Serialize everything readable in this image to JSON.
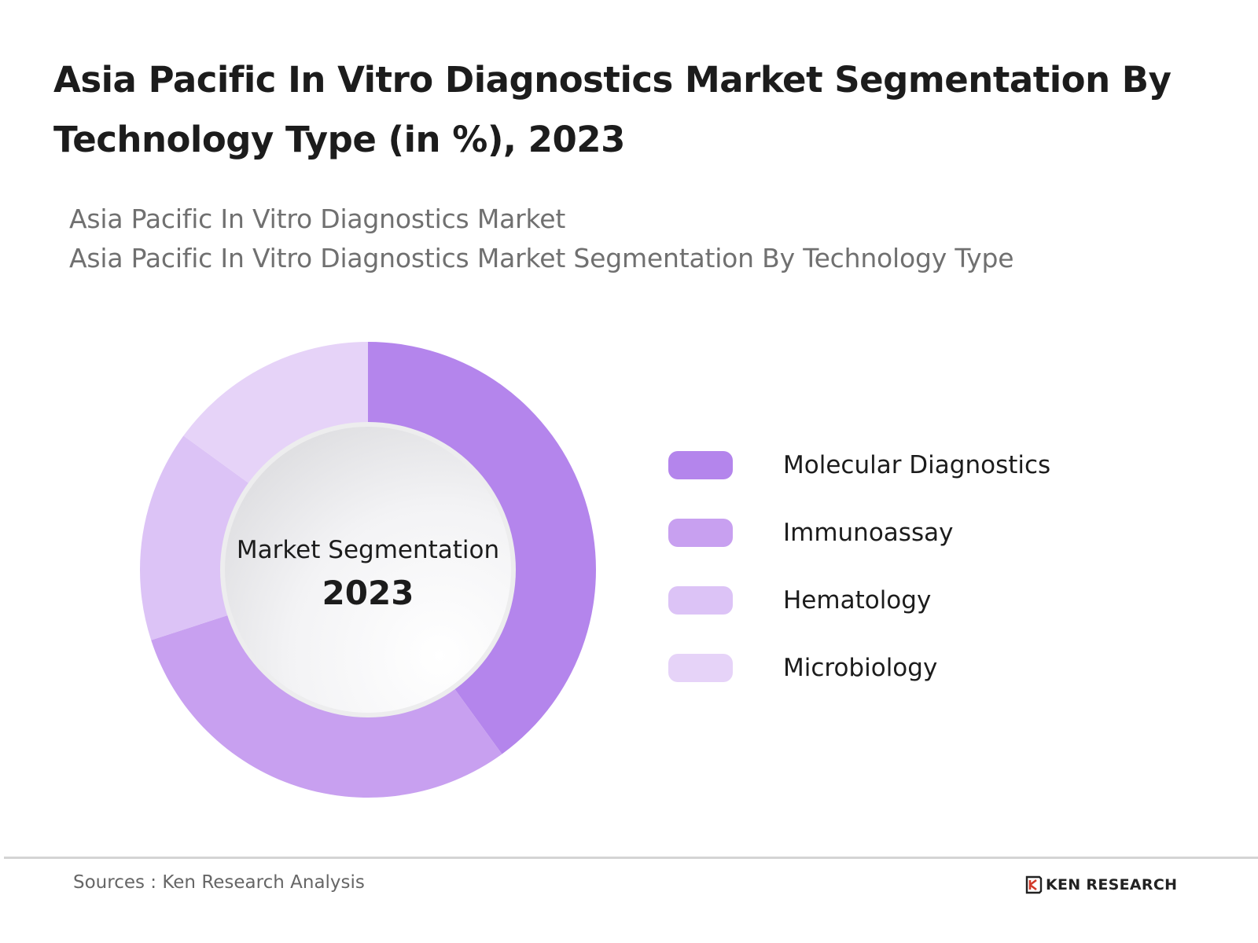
{
  "title": "Asia Pacific In Vitro Diagnostics Market Segmentation By Technology Type (in %), 2023",
  "subtitle": {
    "line1": "Asia Pacific In Vitro Diagnostics Market",
    "line2": "Asia Pacific In Vitro Diagnostics Market Segmentation By Technology Type"
  },
  "center": {
    "label": "Market Segmentation",
    "year": "2023"
  },
  "footer": {
    "source": "Sources : Ken Research Analysis",
    "brand": "KEN RESEARCH"
  },
  "chart_data": {
    "type": "pie",
    "donut": true,
    "categories": [
      "Molecular Diagnostics",
      "Immunoassay",
      "Hematology",
      "Microbiology"
    ],
    "values": [
      40,
      30,
      15,
      15
    ],
    "colors": [
      "#b485ec",
      "#c8a0f0",
      "#dcc3f6",
      "#e6d3f8"
    ],
    "legend_position": "right",
    "start_angle": "top",
    "direction": "clockwise"
  }
}
